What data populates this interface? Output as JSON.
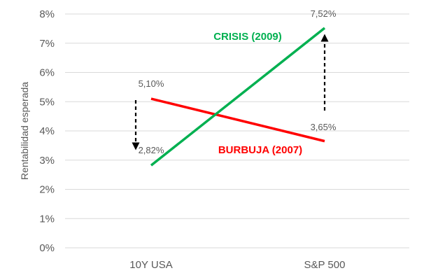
{
  "chart_data": {
    "type": "line",
    "title": "",
    "xlabel": "",
    "ylabel": "Rentabilidad esperada",
    "categories": [
      "10Y USA",
      "S&P 500"
    ],
    "ylim": [
      0,
      8
    ],
    "y_ticks": [
      "0%",
      "1%",
      "2%",
      "3%",
      "4%",
      "5%",
      "6%",
      "7%",
      "8%"
    ],
    "grid": true,
    "legend": "none",
    "series": [
      {
        "name": "BURBUJA (2007)",
        "values": [
          5.1,
          3.65
        ],
        "labels": [
          "5,10%",
          "3,65%"
        ],
        "color": "#ff0000"
      },
      {
        "name": "CRISIS (2009)",
        "values": [
          2.82,
          7.52
        ],
        "labels": [
          "2,82%",
          "7,52%"
        ],
        "color": "#00b050"
      }
    ],
    "annotations": [
      {
        "type": "dashed-arrow",
        "category": "10Y USA",
        "from": 5.1,
        "to": 2.82,
        "direction": "down"
      },
      {
        "type": "dashed-arrow",
        "category": "S&P 500",
        "from": 3.65,
        "to": 7.52,
        "direction": "up"
      }
    ]
  }
}
